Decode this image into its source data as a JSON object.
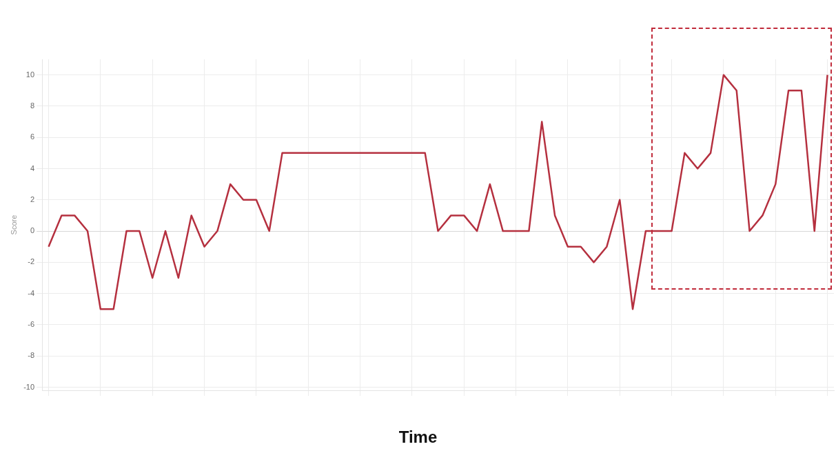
{
  "chart_data": {
    "type": "line",
    "xlabel": "Time",
    "ylabel": "Score",
    "categories": [
      null,
      null,
      null,
      null,
      null,
      null,
      null,
      null,
      null,
      null,
      null,
      null,
      null,
      null,
      null,
      null,
      null,
      null,
      null,
      null,
      null,
      null,
      null,
      null,
      null,
      null,
      null,
      null,
      null,
      null,
      null,
      null,
      null,
      null,
      null,
      null,
      null,
      null,
      null,
      null,
      null,
      null,
      null,
      null,
      null,
      null,
      null,
      null,
      null,
      null,
      null,
      null,
      null,
      null,
      null,
      null,
      null,
      null,
      null,
      null,
      null
    ],
    "series": [
      {
        "color": "#b5303f",
        "values": [
          -1,
          1,
          1,
          0,
          -5,
          -5,
          0,
          0,
          -3,
          0,
          -3,
          1,
          -1,
          0,
          3,
          2,
          2,
          0,
          5,
          5,
          5,
          5,
          5,
          5,
          5,
          5,
          5,
          5,
          5,
          5,
          0,
          1,
          1,
          0,
          3,
          0,
          0,
          0,
          7,
          1,
          -1,
          -1,
          -2,
          -1,
          2,
          -5,
          0,
          0,
          0,
          5,
          4,
          5,
          10,
          9,
          0,
          1,
          3,
          9,
          9,
          0,
          10
        ]
      }
    ],
    "ylim": [
      -10.2,
      11
    ],
    "yticks": [
      -10,
      -8,
      -6,
      -4,
      -2,
      0,
      2,
      4,
      6,
      8,
      10
    ],
    "grid": true,
    "legend": false,
    "tick_labels": "y",
    "marker": "none",
    "line_style": "solid"
  }
}
